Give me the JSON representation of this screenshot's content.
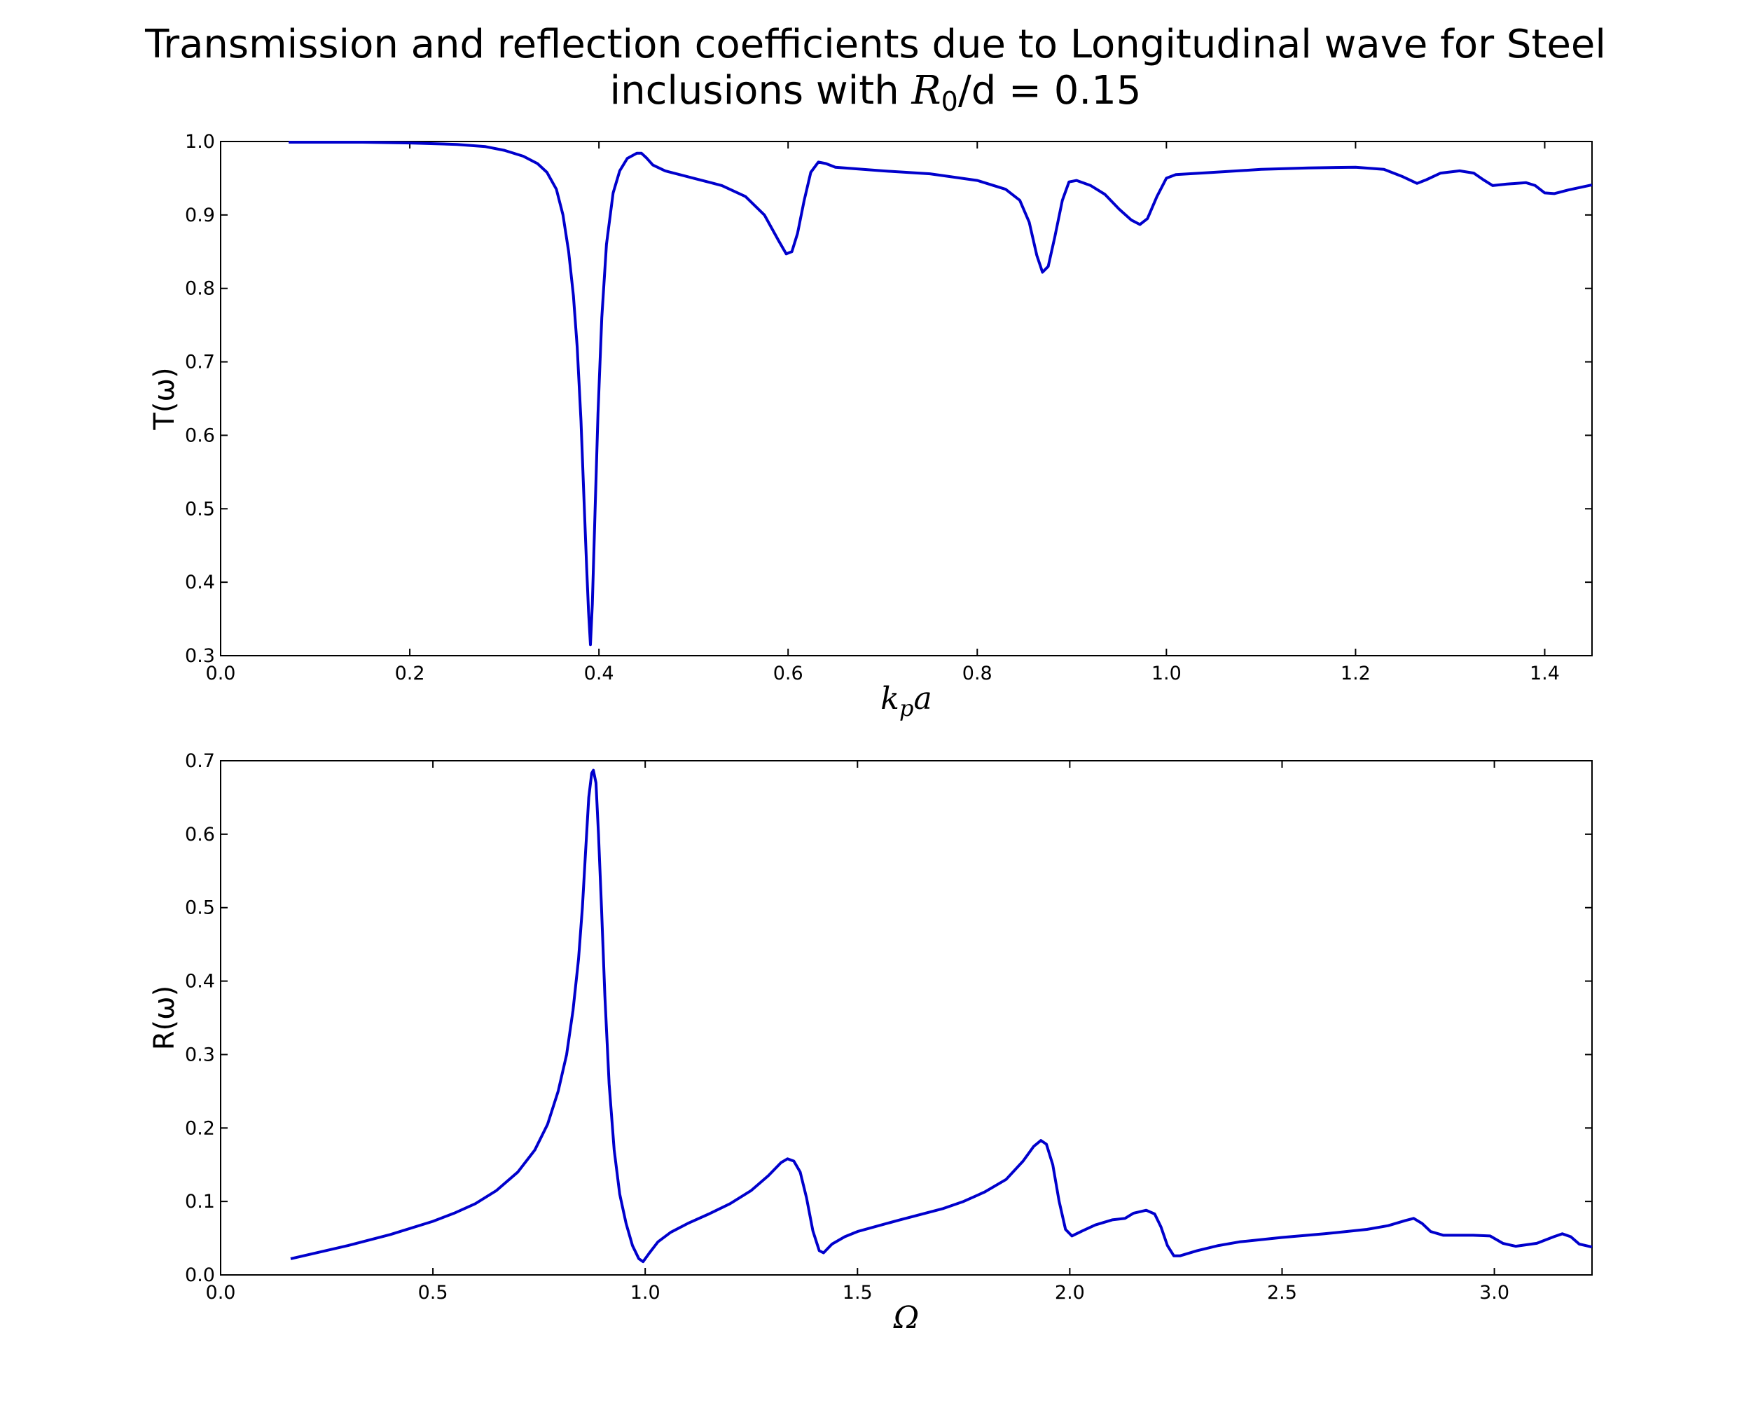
{
  "title": {
    "line1": "Transmission and reflection coefficients due to Longitudinal wave for Steel",
    "line2_prefix": "inclusions with ",
    "line2_math": "R",
    "line2_sub": "0",
    "line2_suffix": "/d = 0.15"
  },
  "colors": {
    "series": "#0000cc",
    "axes": "#000000"
  },
  "chart_data": [
    {
      "type": "line",
      "ylabel": "T(ω)",
      "xlabel": "kpa",
      "xlabel_display": {
        "main": "k",
        "sub": "p",
        "tail": "a"
      },
      "xlim": [
        0.0,
        1.45
      ],
      "ylim": [
        0.3,
        1.0
      ],
      "xticks": [
        "0.0",
        "0.2",
        "0.4",
        "0.6",
        "0.8",
        "1.0",
        "1.2",
        "1.4"
      ],
      "yticks": [
        "0.3",
        "0.4",
        "0.5",
        "0.6",
        "0.7",
        "0.8",
        "0.9",
        "1.0"
      ],
      "grid": false,
      "points": [
        [
          0.072,
          0.999
        ],
        [
          0.15,
          0.999
        ],
        [
          0.2,
          0.998
        ],
        [
          0.25,
          0.996
        ],
        [
          0.28,
          0.993
        ],
        [
          0.3,
          0.988
        ],
        [
          0.32,
          0.98
        ],
        [
          0.335,
          0.97
        ],
        [
          0.345,
          0.958
        ],
        [
          0.355,
          0.935
        ],
        [
          0.362,
          0.9
        ],
        [
          0.368,
          0.85
        ],
        [
          0.373,
          0.79
        ],
        [
          0.377,
          0.72
        ],
        [
          0.381,
          0.62
        ],
        [
          0.384,
          0.52
        ],
        [
          0.387,
          0.42
        ],
        [
          0.389,
          0.36
        ],
        [
          0.391,
          0.315
        ],
        [
          0.393,
          0.37
        ],
        [
          0.396,
          0.5
        ],
        [
          0.399,
          0.63
        ],
        [
          0.403,
          0.76
        ],
        [
          0.408,
          0.86
        ],
        [
          0.415,
          0.93
        ],
        [
          0.422,
          0.96
        ],
        [
          0.43,
          0.977
        ],
        [
          0.44,
          0.984
        ],
        [
          0.445,
          0.984
        ],
        [
          0.45,
          0.978
        ],
        [
          0.457,
          0.968
        ],
        [
          0.47,
          0.96
        ],
        [
          0.5,
          0.95
        ],
        [
          0.53,
          0.94
        ],
        [
          0.555,
          0.925
        ],
        [
          0.575,
          0.9
        ],
        [
          0.59,
          0.865
        ],
        [
          0.598,
          0.847
        ],
        [
          0.604,
          0.85
        ],
        [
          0.61,
          0.875
        ],
        [
          0.617,
          0.92
        ],
        [
          0.624,
          0.958
        ],
        [
          0.632,
          0.972
        ],
        [
          0.64,
          0.97
        ],
        [
          0.65,
          0.965
        ],
        [
          0.7,
          0.96
        ],
        [
          0.75,
          0.956
        ],
        [
          0.8,
          0.947
        ],
        [
          0.83,
          0.935
        ],
        [
          0.845,
          0.92
        ],
        [
          0.855,
          0.89
        ],
        [
          0.863,
          0.845
        ],
        [
          0.869,
          0.822
        ],
        [
          0.875,
          0.83
        ],
        [
          0.882,
          0.87
        ],
        [
          0.89,
          0.92
        ],
        [
          0.897,
          0.945
        ],
        [
          0.905,
          0.947
        ],
        [
          0.92,
          0.94
        ],
        [
          0.935,
          0.928
        ],
        [
          0.95,
          0.908
        ],
        [
          0.963,
          0.893
        ],
        [
          0.972,
          0.887
        ],
        [
          0.98,
          0.895
        ],
        [
          0.99,
          0.925
        ],
        [
          1.0,
          0.95
        ],
        [
          1.01,
          0.955
        ],
        [
          1.05,
          0.958
        ],
        [
          1.1,
          0.962
        ],
        [
          1.15,
          0.964
        ],
        [
          1.2,
          0.965
        ],
        [
          1.23,
          0.962
        ],
        [
          1.25,
          0.952
        ],
        [
          1.265,
          0.943
        ],
        [
          1.275,
          0.948
        ],
        [
          1.29,
          0.957
        ],
        [
          1.31,
          0.96
        ],
        [
          1.325,
          0.957
        ],
        [
          1.335,
          0.948
        ],
        [
          1.345,
          0.94
        ],
        [
          1.36,
          0.942
        ],
        [
          1.38,
          0.944
        ],
        [
          1.39,
          0.94
        ],
        [
          1.4,
          0.93
        ],
        [
          1.41,
          0.929
        ],
        [
          1.425,
          0.934
        ],
        [
          1.45,
          0.941
        ]
      ]
    },
    {
      "type": "line",
      "ylabel": "R(ω)",
      "xlabel": "Ω",
      "xlim": [
        0.0,
        3.23
      ],
      "ylim": [
        0.0,
        0.7
      ],
      "xticks": [
        "0.0",
        "0.5",
        "1.0",
        "1.5",
        "2.0",
        "2.5",
        "3.0"
      ],
      "yticks": [
        "0.0",
        "0.1",
        "0.2",
        "0.3",
        "0.4",
        "0.5",
        "0.6",
        "0.7"
      ],
      "grid": false,
      "points": [
        [
          0.165,
          0.022
        ],
        [
          0.3,
          0.04
        ],
        [
          0.4,
          0.055
        ],
        [
          0.5,
          0.073
        ],
        [
          0.55,
          0.084
        ],
        [
          0.6,
          0.097
        ],
        [
          0.65,
          0.115
        ],
        [
          0.7,
          0.14
        ],
        [
          0.74,
          0.17
        ],
        [
          0.77,
          0.205
        ],
        [
          0.795,
          0.25
        ],
        [
          0.815,
          0.3
        ],
        [
          0.83,
          0.36
        ],
        [
          0.843,
          0.43
        ],
        [
          0.852,
          0.5
        ],
        [
          0.86,
          0.58
        ],
        [
          0.867,
          0.65
        ],
        [
          0.874,
          0.683
        ],
        [
          0.878,
          0.687
        ],
        [
          0.884,
          0.67
        ],
        [
          0.89,
          0.6
        ],
        [
          0.897,
          0.5
        ],
        [
          0.905,
          0.38
        ],
        [
          0.915,
          0.26
        ],
        [
          0.927,
          0.17
        ],
        [
          0.94,
          0.11
        ],
        [
          0.955,
          0.07
        ],
        [
          0.97,
          0.04
        ],
        [
          0.985,
          0.022
        ],
        [
          0.995,
          0.018
        ],
        [
          1.01,
          0.03
        ],
        [
          1.03,
          0.045
        ],
        [
          1.06,
          0.058
        ],
        [
          1.1,
          0.07
        ],
        [
          1.15,
          0.083
        ],
        [
          1.2,
          0.097
        ],
        [
          1.25,
          0.115
        ],
        [
          1.29,
          0.135
        ],
        [
          1.32,
          0.153
        ],
        [
          1.335,
          0.158
        ],
        [
          1.35,
          0.155
        ],
        [
          1.365,
          0.14
        ],
        [
          1.38,
          0.105
        ],
        [
          1.395,
          0.06
        ],
        [
          1.41,
          0.033
        ],
        [
          1.42,
          0.03
        ],
        [
          1.44,
          0.042
        ],
        [
          1.47,
          0.052
        ],
        [
          1.5,
          0.059
        ],
        [
          1.6,
          0.075
        ],
        [
          1.7,
          0.09
        ],
        [
          1.75,
          0.1
        ],
        [
          1.8,
          0.113
        ],
        [
          1.85,
          0.13
        ],
        [
          1.89,
          0.155
        ],
        [
          1.915,
          0.175
        ],
        [
          1.932,
          0.183
        ],
        [
          1.945,
          0.178
        ],
        [
          1.96,
          0.15
        ],
        [
          1.975,
          0.1
        ],
        [
          1.99,
          0.062
        ],
        [
          2.005,
          0.053
        ],
        [
          2.03,
          0.06
        ],
        [
          2.06,
          0.068
        ],
        [
          2.1,
          0.075
        ],
        [
          2.13,
          0.077
        ],
        [
          2.15,
          0.084
        ],
        [
          2.18,
          0.088
        ],
        [
          2.2,
          0.083
        ],
        [
          2.215,
          0.065
        ],
        [
          2.23,
          0.04
        ],
        [
          2.245,
          0.026
        ],
        [
          2.26,
          0.026
        ],
        [
          2.3,
          0.033
        ],
        [
          2.35,
          0.04
        ],
        [
          2.4,
          0.045
        ],
        [
          2.5,
          0.051
        ],
        [
          2.6,
          0.056
        ],
        [
          2.7,
          0.062
        ],
        [
          2.75,
          0.067
        ],
        [
          2.79,
          0.074
        ],
        [
          2.81,
          0.077
        ],
        [
          2.83,
          0.07
        ],
        [
          2.85,
          0.059
        ],
        [
          2.88,
          0.054
        ],
        [
          2.95,
          0.054
        ],
        [
          2.99,
          0.053
        ],
        [
          3.02,
          0.043
        ],
        [
          3.05,
          0.039
        ],
        [
          3.1,
          0.043
        ],
        [
          3.14,
          0.052
        ],
        [
          3.16,
          0.056
        ],
        [
          3.18,
          0.052
        ],
        [
          3.2,
          0.042
        ],
        [
          3.23,
          0.038
        ]
      ]
    }
  ]
}
